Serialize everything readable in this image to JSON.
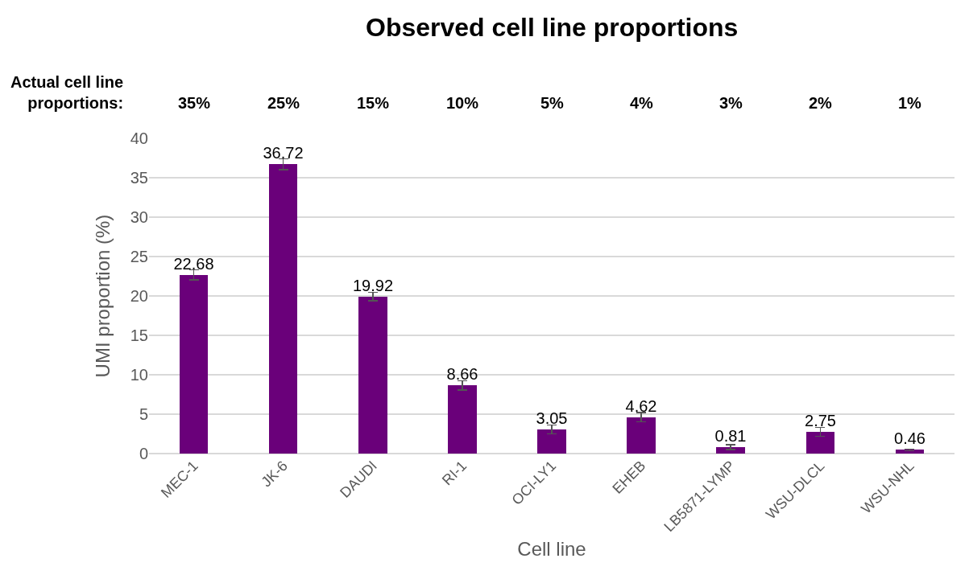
{
  "chart_data": {
    "type": "bar",
    "title": "Observed cell line proportions",
    "xlabel": "Cell line",
    "ylabel": "UMI proportion (%)",
    "categories": [
      "MEC-1",
      "JK-6",
      "DAUDI",
      "RI-1",
      "OCI-LY1",
      "EHEB",
      "LB5871-LYMP",
      "WSU-DLCL",
      "WSU-NHL"
    ],
    "values": [
      22.68,
      36.72,
      19.92,
      8.66,
      3.05,
      4.62,
      0.81,
      2.75,
      0.46
    ],
    "errors": [
      0.65,
      0.7,
      0.55,
      0.6,
      0.55,
      0.6,
      0.3,
      0.55,
      0.1
    ],
    "color": "#6a007a",
    "data_labels": true,
    "ylim": [
      0,
      40
    ],
    "yticks": [
      0,
      5,
      10,
      15,
      20,
      25,
      30,
      35,
      40
    ],
    "grid": "y",
    "legend": false,
    "annotations": [
      "Actual cell line proportions:",
      "35%",
      "25%",
      "15%",
      "10%",
      "5%",
      "4%",
      "3%",
      "2%",
      "1%"
    ]
  }
}
